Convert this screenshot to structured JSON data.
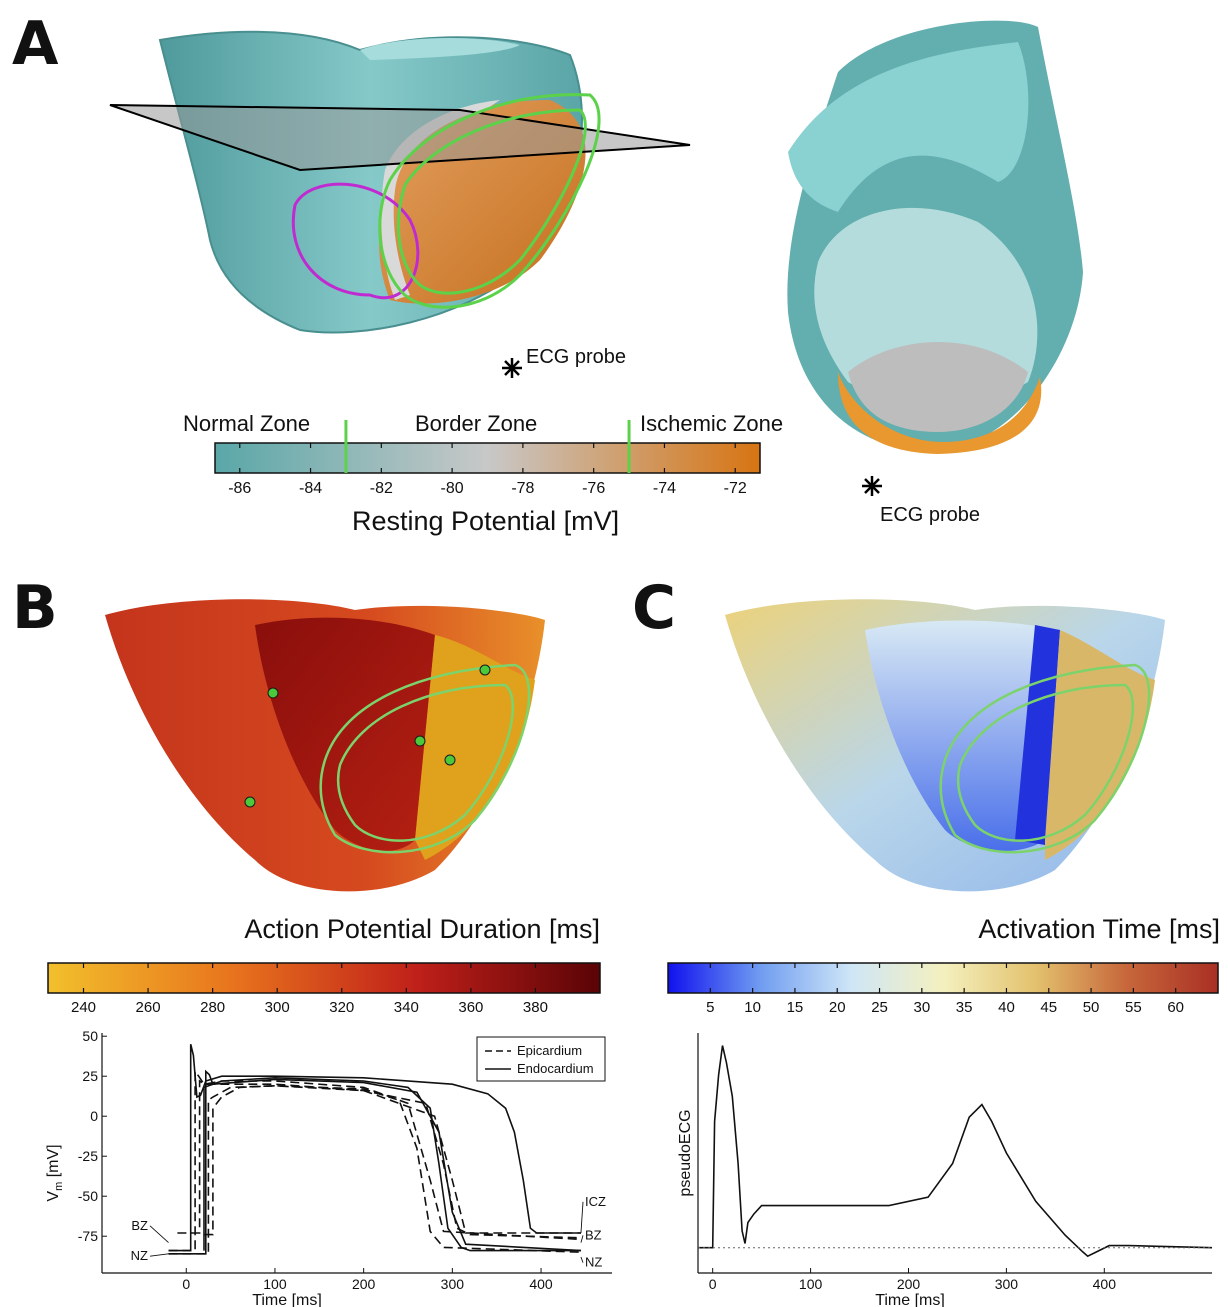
{
  "panels": {
    "a": "A",
    "b": "B",
    "c": "C"
  },
  "panel_a": {
    "probe_label_left": "ECG probe",
    "probe_label_right": "ECG probe",
    "zones": [
      "Normal Zone",
      "Border Zone",
      "Ischemic Zone"
    ],
    "colorbar": {
      "title": "Resting Potential [mV]",
      "ticks": [
        "-86",
        "-84",
        "-82",
        "-80",
        "-78",
        "-76",
        "-74",
        "-72"
      ],
      "range": [
        -86.7,
        -71.3
      ],
      "tick_values": [
        -86,
        -84,
        -82,
        -80,
        -78,
        -76,
        -74,
        -72
      ],
      "zone_boundaries": [
        -83,
        -75
      ],
      "colors": [
        "#5aa7a8",
        "#c8c8c8",
        "#d77412"
      ],
      "boundary_color": "#5cd24a"
    }
  },
  "panel_b": {
    "colorbar": {
      "title": "Action Potential Duration [ms]",
      "ticks": [
        "240",
        "260",
        "280",
        "300",
        "320",
        "340",
        "360",
        "380"
      ],
      "tick_values": [
        240,
        260,
        280,
        300,
        320,
        340,
        360,
        380
      ],
      "range": [
        229,
        400
      ],
      "colors": [
        "#f2c02c",
        "#e8741d",
        "#c0201a",
        "#5a0306"
      ]
    }
  },
  "panel_c": {
    "colorbar": {
      "title": "Activation Time [ms]",
      "ticks": [
        "5",
        "10",
        "15",
        "20",
        "25",
        "30",
        "35",
        "40",
        "45",
        "50",
        "55",
        "60"
      ],
      "tick_values": [
        5,
        10,
        15,
        20,
        25,
        30,
        35,
        40,
        45,
        50,
        55,
        60
      ],
      "range": [
        0,
        65
      ],
      "colors": [
        "#1111ee",
        "#6f9cf0",
        "#cfe6f7",
        "#f4f0bf",
        "#e3c26e",
        "#c7673b",
        "#a92f24"
      ]
    }
  },
  "chart_data": [
    {
      "type": "line",
      "xlabel": "Time [ms]",
      "ylabel": "V",
      "ylabel_subscript": "m",
      "ylabel_unit": " [mV]",
      "xlim": [
        -95,
        480
      ],
      "ylim": [
        -98,
        52
      ],
      "x_ticks": [
        "0",
        "100",
        "200",
        "300",
        "400"
      ],
      "x_tick_values": [
        0,
        100,
        200,
        300,
        400
      ],
      "y_ticks": [
        "50",
        "25",
        "0",
        "-25",
        "-50",
        "-75"
      ],
      "y_tick_values": [
        50,
        25,
        0,
        -25,
        -50,
        -75
      ],
      "legend": [
        "Epicardium",
        "Endocardium"
      ],
      "curve_labels": [
        "ICZ",
        "BZ",
        "NZ",
        "BZ",
        "NZ"
      ],
      "series": [
        {
          "name": "Endocardium",
          "style": "solid",
          "points": [
            [
              -20,
              -84
            ],
            [
              5,
              -84
            ],
            [
              5,
              45
            ],
            [
              8,
              38
            ],
            [
              12,
              12
            ],
            [
              16,
              13
            ],
            [
              22,
              22
            ],
            [
              40,
              25
            ],
            [
              100,
              25
            ],
            [
              200,
              24
            ],
            [
              300,
              20
            ],
            [
              340,
              14
            ],
            [
              360,
              5
            ],
            [
              370,
              -10
            ],
            [
              380,
              -40
            ],
            [
              388,
              -70
            ],
            [
              395,
              -73
            ],
            [
              445,
              -73
            ]
          ]
        },
        {
          "name": "Endocardium",
          "style": "solid",
          "points": [
            [
              -20,
              -86
            ],
            [
              22,
              -86
            ],
            [
              22,
              28
            ],
            [
              26,
              26
            ],
            [
              30,
              20
            ],
            [
              40,
              22
            ],
            [
              100,
              24
            ],
            [
              200,
              22
            ],
            [
              250,
              18
            ],
            [
              275,
              5
            ],
            [
              285,
              -30
            ],
            [
              295,
              -70
            ],
            [
              310,
              -82
            ],
            [
              320,
              -84
            ],
            [
              445,
              -84
            ]
          ]
        },
        {
          "name": "Endocardium",
          "style": "solid",
          "points": [
            [
              20,
              -84
            ],
            [
              20,
              18
            ],
            [
              30,
              20
            ],
            [
              100,
              23
            ],
            [
              200,
              21
            ],
            [
              260,
              15
            ],
            [
              285,
              -10
            ],
            [
              300,
              -60
            ],
            [
              315,
              -80
            ],
            [
              445,
              -84
            ]
          ]
        },
        {
          "name": "Epicardium",
          "style": "dashed",
          "points": [
            [
              -20,
              -84
            ],
            [
              10,
              -84
            ],
            [
              10,
              28
            ],
            [
              14,
              25
            ],
            [
              20,
              20
            ],
            [
              40,
              22
            ],
            [
              100,
              22
            ],
            [
              200,
              18
            ],
            [
              250,
              8
            ],
            [
              275,
              -40
            ],
            [
              290,
              -72
            ],
            [
              445,
              -77
            ]
          ]
        },
        {
          "name": "Epicardium",
          "style": "dashed",
          "points": [
            [
              -20,
              -86
            ],
            [
              25,
              -86
            ],
            [
              25,
              10
            ],
            [
              30,
              12
            ],
            [
              50,
              18
            ],
            [
              100,
              19
            ],
            [
              200,
              17
            ],
            [
              240,
              10
            ],
            [
              260,
              -20
            ],
            [
              275,
              -72
            ],
            [
              290,
              -82
            ],
            [
              445,
              -85
            ]
          ]
        },
        {
          "name": "Epicardium",
          "style": "dashed",
          "points": [
            [
              -10,
              -73
            ],
            [
              15,
              -73
            ],
            [
              15,
              22
            ],
            [
              20,
              20
            ],
            [
              50,
              20
            ],
            [
              100,
              20
            ],
            [
              200,
              16
            ],
            [
              270,
              8
            ],
            [
              290,
              -30
            ],
            [
              305,
              -70
            ],
            [
              320,
              -74
            ],
            [
              445,
              -76
            ]
          ]
        },
        {
          "name": "Epicardium",
          "style": "dashed",
          "points": [
            [
              20,
              -74
            ],
            [
              30,
              -74
            ],
            [
              30,
              5
            ],
            [
              40,
              12
            ],
            [
              60,
              18
            ],
            [
              100,
              19
            ],
            [
              200,
              16
            ],
            [
              280,
              0
            ],
            [
              300,
              -40
            ],
            [
              315,
              -73
            ],
            [
              445,
              -73
            ]
          ]
        }
      ]
    },
    {
      "type": "line",
      "xlabel": "Time [ms]",
      "ylabel": "pseudoECG",
      "xlim": [
        -15,
        510
      ],
      "ylim": [
        -0.12,
        1.02
      ],
      "x_ticks": [
        "0",
        "100",
        "200",
        "300",
        "400"
      ],
      "x_tick_values": [
        0,
        100,
        200,
        300,
        400
      ],
      "series": [
        {
          "name": "",
          "style": "solid",
          "points": [
            [
              -15,
              0
            ],
            [
              0,
              0
            ],
            [
              2,
              0.6
            ],
            [
              6,
              0.82
            ],
            [
              10,
              0.96
            ],
            [
              14,
              0.88
            ],
            [
              20,
              0.72
            ],
            [
              26,
              0.4
            ],
            [
              30,
              0.08
            ],
            [
              33,
              0.02
            ],
            [
              36,
              0.12
            ],
            [
              42,
              0.16
            ],
            [
              50,
              0.2
            ],
            [
              70,
              0.2
            ],
            [
              120,
              0.2
            ],
            [
              180,
              0.2
            ],
            [
              220,
              0.24
            ],
            [
              245,
              0.4
            ],
            [
              262,
              0.62
            ],
            [
              275,
              0.68
            ],
            [
              285,
              0.6
            ],
            [
              300,
              0.45
            ],
            [
              330,
              0.22
            ],
            [
              360,
              0.06
            ],
            [
              378,
              -0.02
            ],
            [
              383,
              -0.04
            ],
            [
              392,
              -0.02
            ],
            [
              405,
              0.01
            ],
            [
              425,
              0.01
            ],
            [
              510,
              0
            ]
          ]
        },
        {
          "name": "",
          "style": "dotted",
          "points": [
            [
              -15,
              0
            ],
            [
              510,
              0
            ]
          ]
        }
      ]
    }
  ]
}
